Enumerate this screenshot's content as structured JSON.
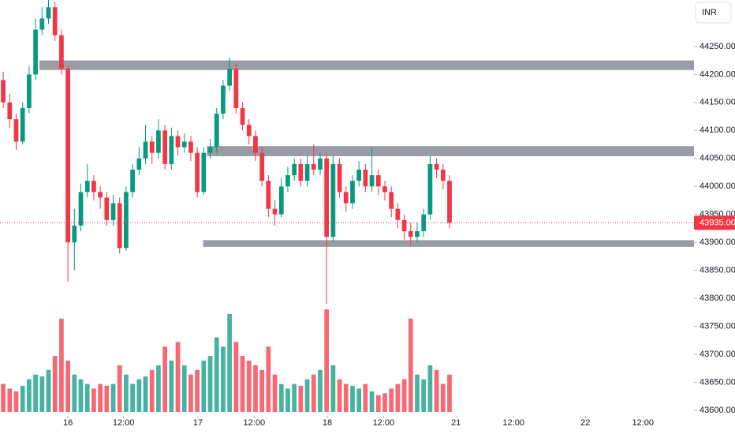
{
  "chart_data": {
    "type": "candlestick",
    "currency": "INR",
    "open": [
      44190,
      44150,
      44120,
      44080,
      44140,
      44200,
      44280,
      44300,
      44320,
      44270,
      44210,
      43900,
      43930,
      43990,
      44010,
      43990,
      43980,
      43940,
      43970,
      43890,
      43990,
      44030,
      44050,
      44080,
      44060,
      44100,
      44040,
      44090,
      44070,
      44080,
      44060,
      43990,
      44060,
      44070,
      44130,
      44180,
      44210,
      44140,
      44110,
      44090,
      44060,
      44010,
      43960,
      43950,
      44000,
      44020,
      44040,
      44010,
      44040,
      44030,
      44050,
      43910,
      44040,
      43990,
      43970,
      44010,
      44030,
      44000,
      44020,
      44000,
      43990,
      43960,
      43940,
      43920,
      43910,
      43920,
      43950,
      44040,
      44030,
      44010
    ],
    "high": [
      44205,
      44165,
      44130,
      44150,
      44215,
      44300,
      44320,
      44333,
      44330,
      44280,
      44215,
      43960,
      44005,
      44040,
      44020,
      44000,
      43990,
      43985,
      43980,
      44000,
      44040,
      44070,
      44110,
      44090,
      44120,
      44110,
      44105,
      44100,
      44095,
      44090,
      44070,
      44070,
      44085,
      44140,
      44190,
      44230,
      44220,
      44150,
      44120,
      44100,
      44070,
      44020,
      43975,
      44015,
      44035,
      44050,
      44050,
      44055,
      44075,
      44060,
      44060,
      44055,
      44050,
      44000,
      44020,
      44045,
      44040,
      44070,
      44030,
      44010,
      44000,
      43970,
      43950,
      43935,
      43935,
      43960,
      44055,
      44050,
      44040,
      44020
    ],
    "low": [
      44140,
      44105,
      44065,
      44075,
      44130,
      44190,
      44270,
      44290,
      44260,
      44200,
      43830,
      43850,
      43920,
      43980,
      43975,
      43960,
      43930,
      43930,
      43880,
      43885,
      43980,
      44020,
      44040,
      44040,
      44050,
      44030,
      44030,
      44055,
      44060,
      44045,
      43980,
      43985,
      44050,
      44060,
      44120,
      44170,
      44130,
      44100,
      44075,
      44045,
      44000,
      43945,
      43930,
      43945,
      43990,
      44010,
      44000,
      44000,
      44020,
      44020,
      43790,
      43900,
      43980,
      43955,
      43960,
      44000,
      43990,
      43990,
      43985,
      43975,
      43945,
      43925,
      43905,
      43895,
      43900,
      43910,
      43940,
      44015,
      43995,
      43925
    ],
    "close": [
      44150,
      44120,
      44080,
      44140,
      44200,
      44280,
      44300,
      44320,
      44270,
      44210,
      43900,
      43930,
      43990,
      44010,
      43990,
      43980,
      43940,
      43970,
      43890,
      43990,
      44030,
      44050,
      44080,
      44060,
      44100,
      44040,
      44090,
      44070,
      44080,
      44060,
      43990,
      44060,
      44070,
      44130,
      44180,
      44210,
      44140,
      44110,
      44090,
      44060,
      44010,
      43960,
      43950,
      44000,
      44020,
      44040,
      44010,
      44040,
      44030,
      44050,
      43910,
      44040,
      43990,
      43970,
      44010,
      44030,
      44000,
      44020,
      44000,
      43990,
      43960,
      43940,
      43920,
      43910,
      43920,
      43950,
      44040,
      44030,
      44010,
      43935
    ],
    "volume": [
      30,
      25,
      22,
      28,
      35,
      40,
      38,
      45,
      60,
      100,
      55,
      40,
      35,
      30,
      25,
      30,
      28,
      30,
      50,
      40,
      30,
      35,
      38,
      45,
      50,
      70,
      55,
      75,
      50,
      40,
      45,
      55,
      60,
      80,
      70,
      105,
      75,
      60,
      55,
      50,
      45,
      70,
      40,
      30,
      25,
      30,
      28,
      35,
      40,
      45,
      110,
      50,
      35,
      30,
      28,
      25,
      30,
      22,
      18,
      20,
      25,
      30,
      35,
      100,
      40,
      35,
      50,
      45,
      30,
      40
    ],
    "up_color": "#089981",
    "down_color": "#f23645",
    "last_price": {
      "value": 43935,
      "label": "43935.00"
    },
    "zones": [
      {
        "from": 44208,
        "to": 44225,
        "start": 5.6
      },
      {
        "from": 44054,
        "to": 44072,
        "start": 31.5
      },
      {
        "from": 43892,
        "to": 43904,
        "start": 30.9
      }
    ],
    "xlim": [
      -0.5,
      106.8
    ],
    "xticks": [
      {
        "value": 10,
        "label": "16"
      },
      {
        "value": 18.6,
        "label": "12:00"
      },
      {
        "value": 30.1,
        "label": "17"
      },
      {
        "value": 38.8,
        "label": "12:00"
      },
      {
        "value": 50.1,
        "label": "18"
      },
      {
        "value": 58.8,
        "label": "12:00"
      },
      {
        "value": 70,
        "label": "21"
      },
      {
        "value": 78.9,
        "label": "12:00"
      },
      {
        "value": 90,
        "label": "22"
      },
      {
        "value": 98.9,
        "label": "12:00"
      }
    ],
    "ylim": [
      43593,
      44333
    ],
    "yticks": [
      {
        "value": 43600,
        "label": "43600.00"
      },
      {
        "value": 43650,
        "label": "43650.00"
      },
      {
        "value": 43700,
        "label": "43700.00"
      },
      {
        "value": 43750,
        "label": "43750.00"
      },
      {
        "value": 43800,
        "label": "43800.00"
      },
      {
        "value": 43850,
        "label": "43850.00"
      },
      {
        "value": 43900,
        "label": "43900.00"
      },
      {
        "value": 43950,
        "label": "43950.00"
      },
      {
        "value": 44000,
        "label": "44000.00"
      },
      {
        "value": 44050,
        "label": "44050.00"
      },
      {
        "value": 44100,
        "label": "44100.00"
      },
      {
        "value": 44150,
        "label": "44150.00"
      },
      {
        "value": 44200,
        "label": "44200.00"
      },
      {
        "value": 44250,
        "label": "44250.00"
      }
    ]
  }
}
